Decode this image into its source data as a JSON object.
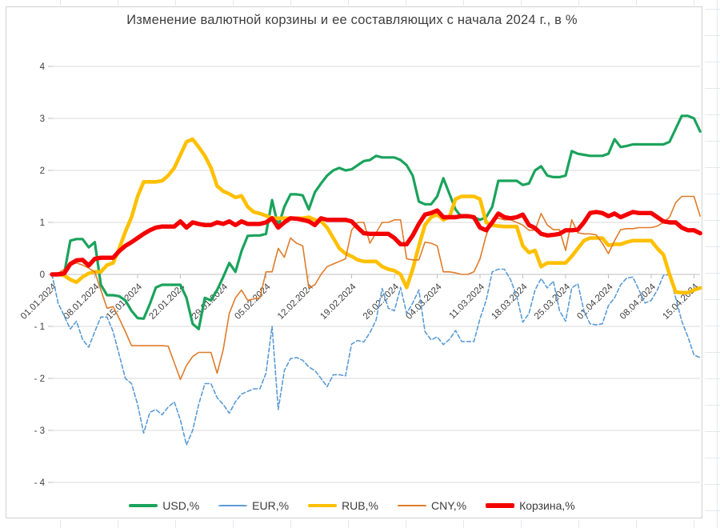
{
  "title": "Изменение валютной корзины и ее составляющих с начала 2024 г., в %",
  "chart_data": {
    "type": "line",
    "title": "Изменение валютной корзины и ее составляющих с начала 2024 г., в %",
    "xlabel": "",
    "ylabel": "",
    "ylim": [
      -4,
      4
    ],
    "grid": "horizontal",
    "legend_position": "bottom",
    "x_unit": "daily dates from 01.01.2024, one point per day",
    "x_tick_labels": [
      "01.01.2024",
      "08.01.2024",
      "15.01.2024",
      "22.01.2024",
      "29.01.2024",
      "05.02.2024",
      "12.02.2024",
      "19.02.2024",
      "26.02.2024",
      "04.03.2024",
      "11.03.2024",
      "18.03.2024",
      "25.03.2024",
      "01.04.2024",
      "08.04.2024",
      "15.04.2024"
    ],
    "x_tick_day_offsets": [
      0,
      7,
      14,
      21,
      28,
      35,
      42,
      49,
      56,
      63,
      70,
      77,
      84,
      91,
      98,
      105
    ],
    "days_total": 107,
    "y_tick_labels": [
      "4",
      "3",
      "2",
      "1",
      "0",
      "- 1",
      "- 2",
      "- 3",
      "- 4"
    ],
    "y_tick_values": [
      4,
      3,
      2,
      1,
      0,
      -1,
      -2,
      -3,
      -4
    ],
    "series": [
      {
        "name": "USD,%",
        "color": "#1aa35c",
        "style": "solid",
        "width": 3.2,
        "values": [
          0,
          0.02,
          0.02,
          0.65,
          0.68,
          0.68,
          0.52,
          0.62,
          -0.2,
          -0.4,
          -0.4,
          -0.42,
          -0.5,
          -0.7,
          -0.84,
          -0.85,
          -0.57,
          -0.25,
          -0.2,
          -0.2,
          -0.2,
          -0.2,
          -0.45,
          -0.95,
          -1.05,
          -0.45,
          -0.5,
          -0.3,
          -0.05,
          0.22,
          0.05,
          0.45,
          0.74,
          0.75,
          0.75,
          0.78,
          1.43,
          0.92,
          1.3,
          1.54,
          1.54,
          1.52,
          1.25,
          1.58,
          1.75,
          1.9,
          2.0,
          2.05,
          2.0,
          2.02,
          2.1,
          2.18,
          2.2,
          2.28,
          2.25,
          2.25,
          2.25,
          2.2,
          2.1,
          1.9,
          1.4,
          1.35,
          1.35,
          1.5,
          1.85,
          1.55,
          1.25,
          1.1,
          1.1,
          1.1,
          1.05,
          1.1,
          1.3,
          1.8,
          1.8,
          1.8,
          1.8,
          1.72,
          1.75,
          2.0,
          2.08,
          1.9,
          1.87,
          1.87,
          1.9,
          2.37,
          2.32,
          2.3,
          2.28,
          2.28,
          2.28,
          2.32,
          2.6,
          2.45,
          2.47,
          2.5,
          2.5,
          2.5,
          2.5,
          2.5,
          2.5,
          2.55,
          2.8,
          3.05,
          3.05,
          3.0,
          2.75
        ]
      },
      {
        "name": "EUR,%",
        "color": "#5b9bd5",
        "style": "dashed",
        "width": 1.6,
        "values": [
          0,
          -0.55,
          -0.8,
          -1.05,
          -0.9,
          -1.25,
          -1.4,
          -1.1,
          -0.82,
          -0.82,
          -1.1,
          -1.55,
          -2.0,
          -2.1,
          -2.5,
          -3.05,
          -2.65,
          -2.6,
          -2.7,
          -2.55,
          -2.45,
          -2.8,
          -3.28,
          -3.0,
          -2.5,
          -2.1,
          -2.1,
          -2.37,
          -2.5,
          -2.67,
          -2.45,
          -2.3,
          -2.25,
          -2.2,
          -2.2,
          -1.9,
          -1.0,
          -2.6,
          -1.85,
          -1.62,
          -1.6,
          -1.65,
          -1.78,
          -1.85,
          -2.0,
          -2.16,
          -1.93,
          -1.93,
          -1.95,
          -1.34,
          -1.27,
          -1.3,
          -1.12,
          -0.88,
          -0.27,
          -0.65,
          -0.7,
          -0.25,
          -0.75,
          -0.55,
          -0.3,
          -1.1,
          -1.26,
          -1.2,
          -1.35,
          -1.25,
          -1.08,
          -1.29,
          -1.29,
          -1.29,
          -0.85,
          -0.5,
          0.05,
          0.1,
          0.1,
          -0.1,
          -0.42,
          -0.92,
          -0.75,
          -0.3,
          -0.08,
          -0.26,
          -0.13,
          -0.7,
          -0.9,
          -0.26,
          -0.18,
          -0.7,
          -0.95,
          -0.97,
          -0.95,
          -0.6,
          -0.45,
          -0.2,
          -0.07,
          -0.05,
          -0.3,
          -0.55,
          -0.5,
          -0.3,
          -0.02,
          0.0,
          -0.45,
          -0.9,
          -1.2,
          -1.55,
          -1.6
        ]
      },
      {
        "name": "RUB,%",
        "color": "#ffc000",
        "style": "solid",
        "width": 4.6,
        "values": [
          0,
          0,
          -0.02,
          -0.1,
          -0.15,
          -0.05,
          0.02,
          0.05,
          0.05,
          0.18,
          0.22,
          0.5,
          0.82,
          1.1,
          1.5,
          1.78,
          1.78,
          1.78,
          1.8,
          1.9,
          2.05,
          2.3,
          2.55,
          2.6,
          2.45,
          2.28,
          2.05,
          1.7,
          1.6,
          1.55,
          1.48,
          1.51,
          1.3,
          1.2,
          1.17,
          1.13,
          1.08,
          1.08,
          1.08,
          1.08,
          1.08,
          1.08,
          1.1,
          1.05,
          1.02,
          0.9,
          0.7,
          0.5,
          0.4,
          0.35,
          0.28,
          0.25,
          0.25,
          0.25,
          0.15,
          0.1,
          0.07,
          0.0,
          -0.25,
          0.1,
          0.55,
          0.95,
          1.1,
          1.15,
          1.05,
          1.1,
          1.45,
          1.5,
          1.5,
          1.5,
          1.45,
          1.0,
          0.95,
          0.93,
          0.92,
          0.92,
          0.92,
          0.55,
          0.42,
          0.46,
          0.15,
          0.22,
          0.22,
          0.22,
          0.22,
          0.35,
          0.5,
          0.65,
          0.7,
          0.7,
          0.7,
          0.56,
          0.58,
          0.58,
          0.62,
          0.65,
          0.65,
          0.65,
          0.65,
          0.5,
          0.38,
          0.0,
          -0.34,
          -0.35,
          -0.35,
          -0.3,
          -0.26
        ]
      },
      {
        "name": "CNY,%",
        "color": "#e07b2a",
        "style": "solid",
        "width": 1.6,
        "values": [
          0,
          0.02,
          0.1,
          0.18,
          0.22,
          0.18,
          0.12,
          0.05,
          -0.3,
          -0.65,
          -0.62,
          -0.85,
          -1.1,
          -1.37,
          -1.37,
          -1.37,
          -1.37,
          -1.37,
          -1.37,
          -1.38,
          -1.7,
          -2.02,
          -1.75,
          -1.58,
          -1.5,
          -1.5,
          -1.5,
          -1.9,
          -1.45,
          -0.75,
          -0.45,
          -0.3,
          -0.5,
          -0.47,
          -0.45,
          0.05,
          0.05,
          0.5,
          0.33,
          0.7,
          0.6,
          0.55,
          -0.26,
          -0.2,
          0.0,
          0.15,
          0.2,
          0.25,
          0.3,
          0.85,
          1.0,
          1.0,
          0.6,
          0.8,
          1.0,
          1.0,
          1.05,
          1.05,
          0.3,
          0.28,
          0.28,
          0.62,
          0.6,
          0.55,
          0.05,
          0.05,
          0.03,
          0.0,
          0.0,
          0.05,
          0.3,
          0.75,
          1.05,
          1.08,
          1.05,
          1.05,
          1.0,
          0.95,
          0.85,
          0.85,
          1.17,
          0.95,
          0.86,
          0.86,
          0.46,
          1.05,
          0.8,
          0.78,
          0.78,
          0.76,
          0.6,
          0.4,
          0.65,
          0.86,
          0.88,
          0.88,
          0.9,
          0.9,
          0.9,
          0.93,
          1.0,
          1.1,
          1.38,
          1.5,
          1.5,
          1.5,
          1.12
        ]
      },
      {
        "name": "Корзина,%",
        "color": "#f40000",
        "style": "solid",
        "width": 5.4,
        "values": [
          0,
          0,
          0.02,
          0.2,
          0.27,
          0.28,
          0.17,
          0.3,
          0.32,
          0.32,
          0.32,
          0.45,
          0.55,
          0.62,
          0.7,
          0.78,
          0.85,
          0.9,
          0.92,
          0.92,
          0.92,
          1.02,
          0.9,
          1.0,
          0.97,
          0.95,
          0.95,
          1.0,
          0.97,
          1.02,
          0.95,
          1.02,
          0.97,
          0.97,
          0.97,
          1.0,
          1.08,
          0.9,
          1.0,
          1.08,
          1.07,
          1.05,
          1.02,
          0.95,
          1.08,
          1.05,
          1.05,
          1.05,
          1.05,
          1.02,
          0.9,
          0.79,
          0.78,
          0.78,
          0.78,
          0.78,
          0.7,
          0.58,
          0.58,
          0.75,
          0.97,
          1.15,
          1.18,
          1.23,
          1.1,
          1.1,
          1.1,
          1.12,
          1.12,
          1.1,
          0.9,
          0.85,
          1.0,
          1.17,
          1.1,
          1.08,
          1.1,
          1.15,
          0.95,
          0.89,
          0.78,
          0.75,
          0.76,
          0.78,
          0.85,
          0.85,
          0.86,
          1.0,
          1.18,
          1.2,
          1.18,
          1.12,
          1.17,
          1.1,
          1.15,
          1.2,
          1.18,
          1.18,
          1.18,
          1.1,
          1.02,
          1.0,
          1.0,
          0.9,
          0.85,
          0.85,
          0.79
        ]
      }
    ],
    "style_colors": {
      "gridline": "#d9d9d9",
      "axis": "#bfbfbf",
      "tick_label": "#404040",
      "title": "#3f3f3f",
      "background": "#ffffff"
    }
  }
}
